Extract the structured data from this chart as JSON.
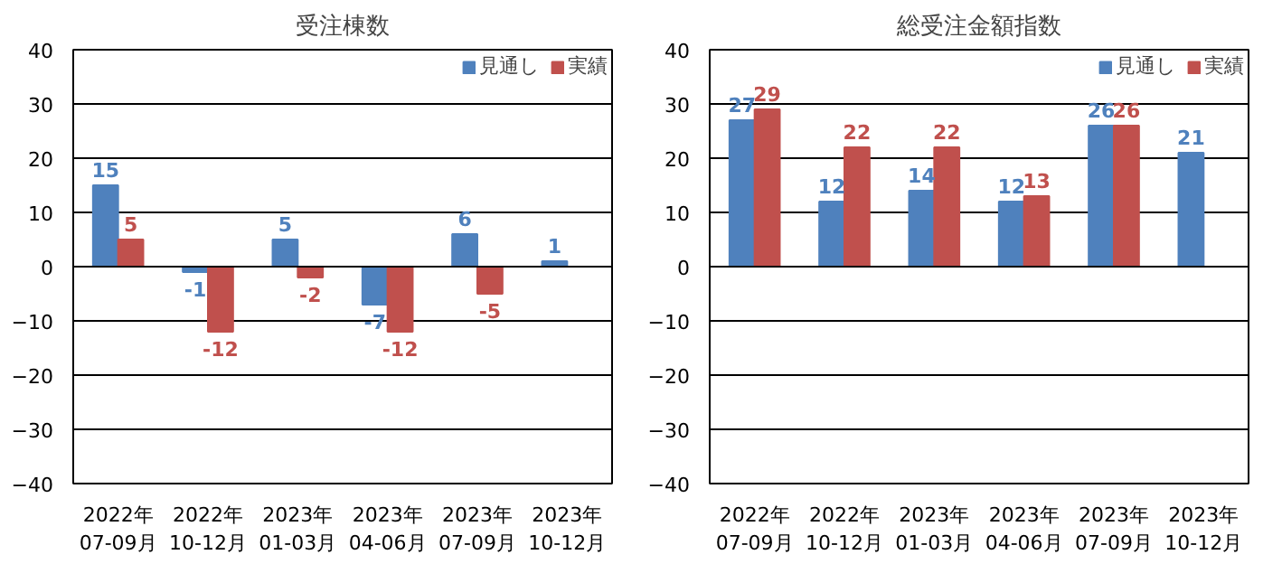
{
  "chart_data": [
    {
      "type": "bar",
      "title": "受注棟数",
      "categories": [
        "2022年\n07-09月",
        "2022年\n10-12月",
        "2023年\n01-03月",
        "2023年\n04-06月",
        "2023年\n07-09月",
        "2023年\n10-12月"
      ],
      "series": [
        {
          "name": "見通し",
          "color": "#4f81bd",
          "values": [
            15,
            -1,
            5,
            -7,
            6,
            1
          ]
        },
        {
          "name": "実績",
          "color": "#c0504d",
          "values": [
            5,
            -12,
            -2,
            -12,
            -5,
            null
          ]
        }
      ],
      "ylim": [
        -40,
        40
      ],
      "yticks": [
        -40,
        -30,
        -20,
        -10,
        0,
        10,
        20,
        30,
        40
      ],
      "grid": "y",
      "legend": "top right",
      "data_labels": true
    },
    {
      "type": "bar",
      "title": "総受注金額指数",
      "categories": [
        "2022年\n07-09月",
        "2022年\n10-12月",
        "2023年\n01-03月",
        "2023年\n04-06月",
        "2023年\n07-09月",
        "2023年\n10-12月"
      ],
      "series": [
        {
          "name": "見通し",
          "color": "#4f81bd",
          "values": [
            27,
            12,
            14,
            12,
            26,
            21
          ]
        },
        {
          "name": "実績",
          "color": "#c0504d",
          "values": [
            29,
            22,
            22,
            13,
            26,
            null
          ]
        }
      ],
      "ylim": [
        -40,
        40
      ],
      "yticks": [
        -40,
        -30,
        -20,
        -10,
        0,
        10,
        20,
        30,
        40
      ],
      "grid": "y",
      "legend": "top right",
      "data_labels": true
    }
  ]
}
